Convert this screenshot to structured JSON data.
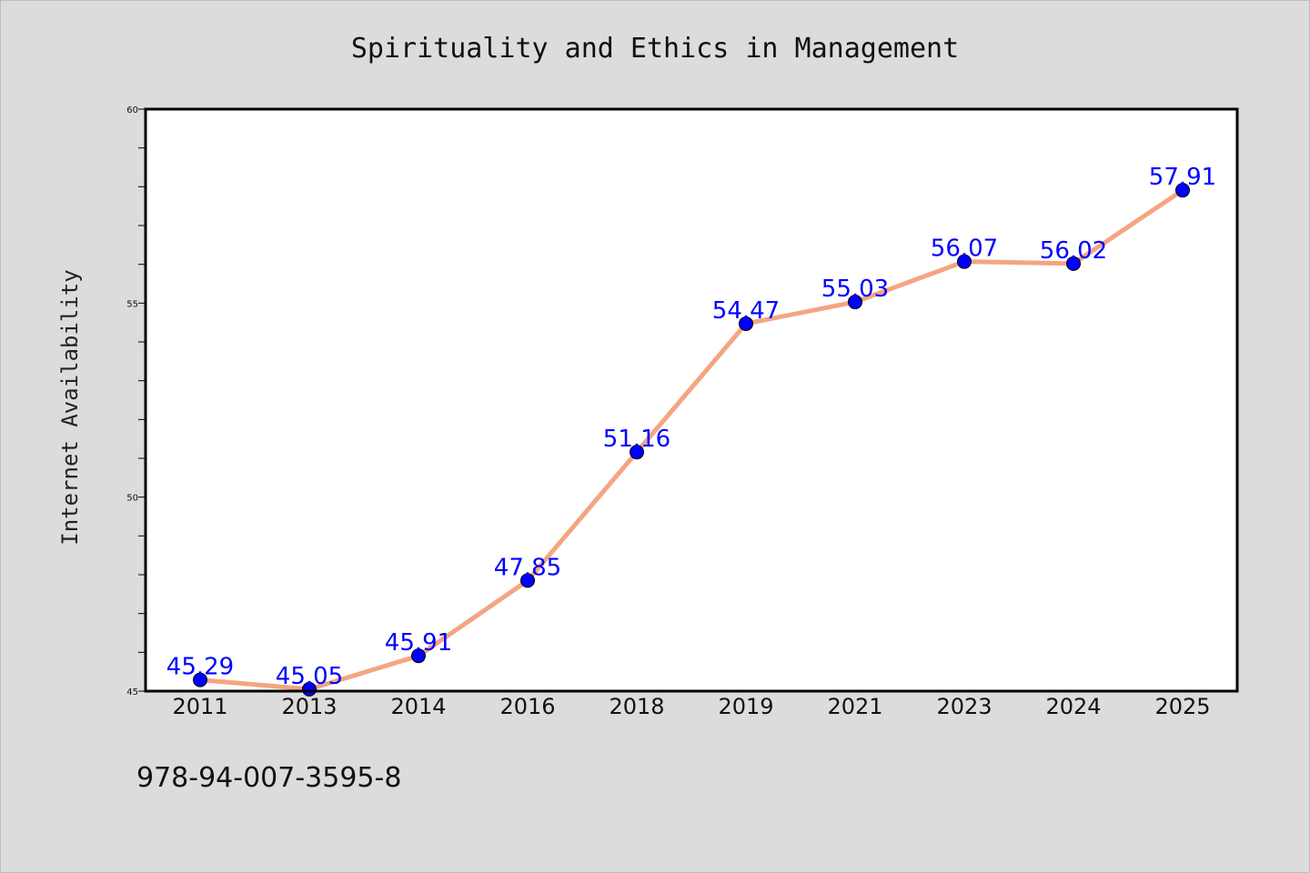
{
  "chart_data": {
    "type": "line",
    "title": "Spirituality and Ethics in Management",
    "xlabel": "",
    "ylabel": "Internet Availability",
    "categories": [
      "2011",
      "2013",
      "2014",
      "2016",
      "2018",
      "2019",
      "2021",
      "2023",
      "2024",
      "2025"
    ],
    "series": [
      {
        "values": [
          45.29,
          45.05,
          45.91,
          47.85,
          51.16,
          54.47,
          55.03,
          56.07,
          56.02,
          57.91
        ],
        "labels": [
          "45.29",
          "45.05",
          "45.91",
          "47.85",
          "51.16",
          "54.47",
          "55.03",
          "56.07",
          "56.02",
          "57.91"
        ]
      }
    ],
    "ylim": [
      45,
      60
    ],
    "yticks": [
      "45",
      "50",
      "55",
      "60"
    ],
    "grid": false,
    "legend": "none",
    "colors": {
      "line": "#f4a582",
      "marker": "#0000ff",
      "label": "#0000ff",
      "background": "#dcdcdc",
      "plot_background": "#ffffff"
    }
  },
  "footer": {
    "text": "978-94-007-3595-8"
  }
}
